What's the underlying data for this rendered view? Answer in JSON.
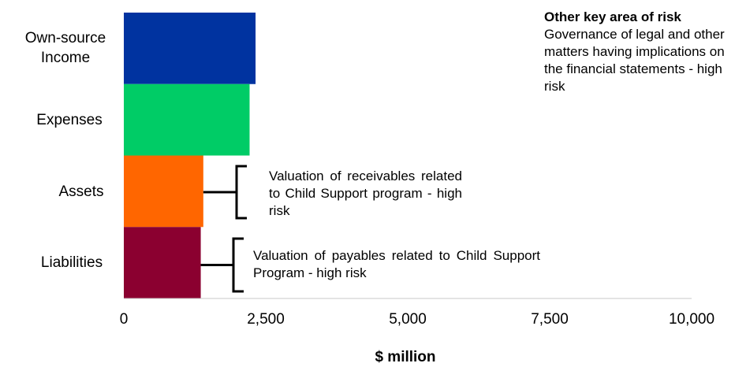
{
  "chart_data": {
    "type": "bar",
    "orientation": "horizontal",
    "categories": [
      "Own-source Income",
      "Expenses",
      "Assets",
      "Liabilities"
    ],
    "values": [
      2320,
      2215,
      1400,
      1355
    ],
    "colors": [
      "#0033a0",
      "#00cc66",
      "#ff6600",
      "#8b0030"
    ],
    "xlabel": "$ million",
    "xlim": [
      0,
      10000
    ],
    "xticks": [
      "0",
      "2,500",
      "5,000",
      "7,500",
      "10,000"
    ],
    "grid": false,
    "annotations": {
      "other_risk_title": "Other key area of risk",
      "other_risk_text": "Governance of legal and other matters having implications on the financial statements - high risk",
      "assets_note": "Valuation of receivables related to Child Support program - high risk",
      "liabilities_note": "Valuation of payables related to Child Support Program - high risk"
    }
  }
}
